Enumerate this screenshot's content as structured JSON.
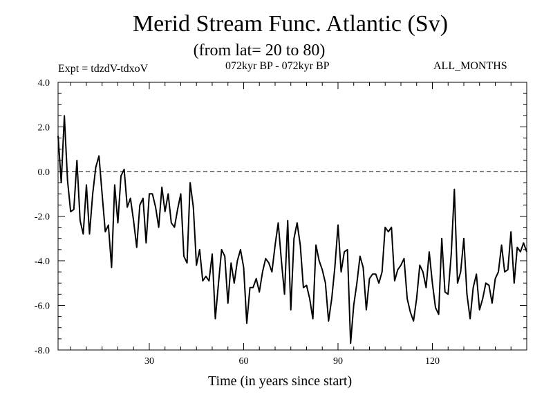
{
  "chart_data": {
    "type": "line",
    "title": "Merid Stream Func. Atlantic (Sv)",
    "subtitle": "(from lat= 20 to 80)",
    "left_label": "Expt = tdzdV-tdxoV",
    "center_label": "072kyr BP - 072kyr BP",
    "right_label": "ALL_MONTHS",
    "xlabel": "Time (in years since start)",
    "ylabel": "",
    "xlim": [
      1,
      150
    ],
    "ylim": [
      -8.0,
      4.0
    ],
    "xticks": [
      30,
      60,
      90,
      120
    ],
    "xtick_labels": [
      "30",
      "60",
      "90",
      "120"
    ],
    "yticks": [
      -8.0,
      -6.0,
      -4.0,
      -2.0,
      0.0,
      2.0,
      4.0
    ],
    "ytick_labels": [
      "-8.0",
      "-6.0",
      "-4.0",
      "-2.0",
      "0.0",
      "2.0",
      "4.0"
    ],
    "reference_line": 0.0,
    "series": [
      {
        "name": "Merid Stream Func.",
        "x": [
          1,
          2,
          3,
          4,
          5,
          6,
          7,
          8,
          9,
          10,
          11,
          12,
          13,
          14,
          15,
          16,
          17,
          18,
          19,
          20,
          21,
          22,
          23,
          24,
          25,
          26,
          27,
          28,
          29,
          30,
          31,
          32,
          33,
          34,
          35,
          36,
          37,
          38,
          39,
          40,
          41,
          42,
          43,
          44,
          45,
          46,
          47,
          48,
          49,
          50,
          51,
          52,
          53,
          54,
          55,
          56,
          57,
          58,
          59,
          60,
          61,
          62,
          63,
          64,
          65,
          66,
          67,
          68,
          69,
          70,
          71,
          72,
          73,
          74,
          75,
          76,
          77,
          78,
          79,
          80,
          81,
          82,
          83,
          84,
          85,
          86,
          87,
          88,
          89,
          90,
          91,
          92,
          93,
          94,
          95,
          96,
          97,
          98,
          99,
          100,
          101,
          102,
          103,
          104,
          105,
          106,
          107,
          108,
          109,
          110,
          111,
          112,
          113,
          114,
          115,
          116,
          117,
          118,
          119,
          120,
          121,
          122,
          123,
          124,
          125,
          126,
          127,
          128,
          129,
          130,
          131,
          132,
          133,
          134,
          135,
          136,
          137,
          138,
          139,
          140,
          141,
          142,
          143,
          144,
          145,
          146,
          147,
          148,
          149,
          150
        ],
        "values": [
          1.6,
          -0.5,
          2.5,
          -0.4,
          -1.8,
          -1.7,
          0.5,
          -2.2,
          -2.8,
          -0.6,
          -2.8,
          -1.0,
          0.2,
          0.7,
          -1.0,
          -2.7,
          -2.4,
          -4.3,
          -0.6,
          -2.3,
          -0.2,
          0.1,
          -1.6,
          -1.2,
          -2.2,
          -3.4,
          -1.5,
          -1.2,
          -3.2,
          -1.0,
          -1.0,
          -1.6,
          -2.5,
          -0.7,
          -1.8,
          -1.0,
          -2.3,
          -2.5,
          -1.7,
          -1.0,
          -3.8,
          -4.1,
          -0.5,
          -1.6,
          -4.2,
          -3.5,
          -4.9,
          -4.7,
          -4.9,
          -3.7,
          -6.6,
          -5.0,
          -3.5,
          -3.8,
          -5.9,
          -4.1,
          -5.0,
          -4.0,
          -3.5,
          -4.3,
          -6.8,
          -5.2,
          -5.2,
          -4.8,
          -5.4,
          -4.5,
          -3.9,
          -4.1,
          -4.5,
          -3.3,
          -2.3,
          -4.0,
          -5.5,
          -2.2,
          -6.2,
          -3.0,
          -2.3,
          -3.3,
          -5.2,
          -5.1,
          -5.7,
          -6.6,
          -3.3,
          -4.0,
          -4.4,
          -5.0,
          -6.7,
          -5.7,
          -4.3,
          -2.4,
          -4.5,
          -3.6,
          -3.5,
          -7.7,
          -6.0,
          -5.0,
          -3.8,
          -4.3,
          -6.2,
          -4.8,
          -4.6,
          -4.6,
          -5.0,
          -4.5,
          -2.5,
          -2.7,
          -2.5,
          -4.9,
          -4.4,
          -4.2,
          -3.9,
          -5.7,
          -6.3,
          -6.7,
          -5.7,
          -4.2,
          -4.5,
          -5.2,
          -3.6,
          -5.0,
          -6.1,
          -6.4,
          -3.0,
          -5.4,
          -5.5,
          -3.7,
          -0.8,
          -5.0,
          -4.5,
          -3.0,
          -5.5,
          -6.6,
          -5.2,
          -4.6,
          -6.2,
          -5.7,
          -5.0,
          -5.1,
          -5.9,
          -4.8,
          -4.5,
          -3.3,
          -4.5,
          -4.4,
          -2.7,
          -5.0,
          -3.4,
          -3.6,
          -3.2,
          -3.6
        ]
      }
    ]
  }
}
